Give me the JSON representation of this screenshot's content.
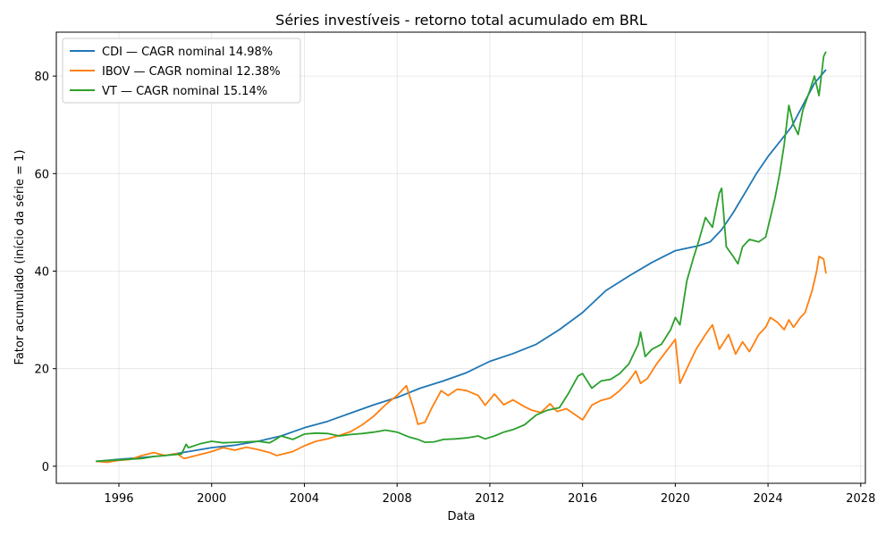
{
  "chart_data": {
    "type": "line",
    "title": "Séries investíveis - retorno total acumulado em BRL",
    "xlabel": "Data",
    "ylabel": "Fator acumulado (início da série = 1)",
    "xlim": [
      1993.3,
      2028.2
    ],
    "ylim": [
      -3.5,
      89.0
    ],
    "x_ticks": [
      1996,
      2000,
      2004,
      2008,
      2012,
      2016,
      2020,
      2024,
      2028
    ],
    "y_ticks": [
      0,
      20,
      40,
      60,
      80
    ],
    "grid": true,
    "legend_position": "top-left",
    "series": [
      {
        "name": "CDI — CAGR nominal 14.98%",
        "color": "#1f77b4",
        "points": [
          [
            1995.0,
            1.0
          ],
          [
            1996.0,
            1.4
          ],
          [
            1997.0,
            1.8
          ],
          [
            1998.0,
            2.2
          ],
          [
            1999.0,
            3.0
          ],
          [
            2000.0,
            3.8
          ],
          [
            2001.0,
            4.3
          ],
          [
            2002.0,
            5.1
          ],
          [
            2003.0,
            6.2
          ],
          [
            2004.0,
            7.9
          ],
          [
            2005.0,
            9.2
          ],
          [
            2006.0,
            10.9
          ],
          [
            2007.0,
            12.6
          ],
          [
            2008.0,
            14.1
          ],
          [
            2009.0,
            16.0
          ],
          [
            2010.0,
            17.5
          ],
          [
            2011.0,
            19.2
          ],
          [
            2012.0,
            21.5
          ],
          [
            2013.0,
            23.1
          ],
          [
            2014.0,
            25.0
          ],
          [
            2015.0,
            28.0
          ],
          [
            2016.0,
            31.5
          ],
          [
            2017.0,
            36.0
          ],
          [
            2018.0,
            39.0
          ],
          [
            2019.0,
            41.8
          ],
          [
            2020.0,
            44.2
          ],
          [
            2021.0,
            45.2
          ],
          [
            2021.5,
            46.0
          ],
          [
            2022.0,
            48.5
          ],
          [
            2022.5,
            52.0
          ],
          [
            2023.0,
            56.0
          ],
          [
            2023.5,
            60.0
          ],
          [
            2024.0,
            63.5
          ],
          [
            2025.0,
            69.5
          ],
          [
            2025.5,
            74.0
          ],
          [
            2026.0,
            78.5
          ],
          [
            2026.5,
            81.3
          ]
        ]
      },
      {
        "name": "IBOV — CAGR nominal 12.38%",
        "color": "#ff7f0e",
        "points": [
          [
            1995.0,
            1.0
          ],
          [
            1995.5,
            0.8
          ],
          [
            1996.0,
            1.2
          ],
          [
            1996.5,
            1.4
          ],
          [
            1997.0,
            2.2
          ],
          [
            1997.5,
            2.8
          ],
          [
            1998.0,
            2.2
          ],
          [
            1998.5,
            2.6
          ],
          [
            1998.8,
            1.6
          ],
          [
            1999.0,
            1.8
          ],
          [
            1999.5,
            2.4
          ],
          [
            2000.0,
            3.0
          ],
          [
            2000.5,
            3.8
          ],
          [
            2001.0,
            3.3
          ],
          [
            2001.5,
            3.9
          ],
          [
            2002.0,
            3.4
          ],
          [
            2002.5,
            2.8
          ],
          [
            2002.8,
            2.2
          ],
          [
            2003.0,
            2.4
          ],
          [
            2003.5,
            3.0
          ],
          [
            2004.0,
            4.2
          ],
          [
            2004.5,
            5.1
          ],
          [
            2005.0,
            5.6
          ],
          [
            2005.5,
            6.3
          ],
          [
            2006.0,
            7.1
          ],
          [
            2006.5,
            8.5
          ],
          [
            2007.0,
            10.3
          ],
          [
            2007.5,
            12.6
          ],
          [
            2008.0,
            14.5
          ],
          [
            2008.4,
            16.5
          ],
          [
            2008.7,
            12.0
          ],
          [
            2008.9,
            8.6
          ],
          [
            2009.2,
            9.0
          ],
          [
            2009.5,
            12.0
          ],
          [
            2009.9,
            15.5
          ],
          [
            2010.2,
            14.5
          ],
          [
            2010.6,
            15.8
          ],
          [
            2011.0,
            15.5
          ],
          [
            2011.5,
            14.5
          ],
          [
            2011.8,
            12.5
          ],
          [
            2012.2,
            14.8
          ],
          [
            2012.6,
            12.6
          ],
          [
            2013.0,
            13.6
          ],
          [
            2013.5,
            12.2
          ],
          [
            2013.8,
            11.5
          ],
          [
            2014.2,
            11.0
          ],
          [
            2014.6,
            12.8
          ],
          [
            2014.9,
            11.2
          ],
          [
            2015.3,
            11.8
          ],
          [
            2015.7,
            10.5
          ],
          [
            2016.0,
            9.5
          ],
          [
            2016.4,
            12.5
          ],
          [
            2016.8,
            13.5
          ],
          [
            2017.2,
            14.0
          ],
          [
            2017.6,
            15.5
          ],
          [
            2018.0,
            17.5
          ],
          [
            2018.3,
            19.5
          ],
          [
            2018.5,
            17.0
          ],
          [
            2018.8,
            18.0
          ],
          [
            2019.2,
            21.0
          ],
          [
            2019.6,
            23.5
          ],
          [
            2020.0,
            26.0
          ],
          [
            2020.2,
            17.0
          ],
          [
            2020.5,
            20.0
          ],
          [
            2020.9,
            24.0
          ],
          [
            2021.3,
            27.0
          ],
          [
            2021.6,
            29.0
          ],
          [
            2021.9,
            24.0
          ],
          [
            2022.3,
            27.0
          ],
          [
            2022.6,
            23.0
          ],
          [
            2022.9,
            25.5
          ],
          [
            2023.2,
            23.5
          ],
          [
            2023.6,
            27.0
          ],
          [
            2023.9,
            28.5
          ],
          [
            2024.1,
            30.5
          ],
          [
            2024.4,
            29.5
          ],
          [
            2024.7,
            28.0
          ],
          [
            2024.9,
            30.0
          ],
          [
            2025.1,
            28.5
          ],
          [
            2025.4,
            30.5
          ],
          [
            2025.6,
            31.5
          ],
          [
            2025.9,
            36.0
          ],
          [
            2026.1,
            40.0
          ],
          [
            2026.2,
            43.0
          ],
          [
            2026.4,
            42.5
          ],
          [
            2026.5,
            39.5
          ]
        ]
      },
      {
        "name": "VT — CAGR nominal 15.14%",
        "color": "#2ca02c",
        "points": [
          [
            1995.0,
            1.0
          ],
          [
            1996.0,
            1.3
          ],
          [
            1997.0,
            1.6
          ],
          [
            1997.5,
            2.0
          ],
          [
            1998.0,
            2.2
          ],
          [
            1998.7,
            2.5
          ],
          [
            1998.9,
            4.5
          ],
          [
            1999.0,
            3.8
          ],
          [
            1999.5,
            4.6
          ],
          [
            2000.0,
            5.1
          ],
          [
            2000.5,
            4.8
          ],
          [
            2001.0,
            4.9
          ],
          [
            2001.5,
            5.0
          ],
          [
            2002.0,
            5.1
          ],
          [
            2002.5,
            4.8
          ],
          [
            2002.8,
            5.6
          ],
          [
            2003.0,
            6.2
          ],
          [
            2003.5,
            5.5
          ],
          [
            2004.0,
            6.6
          ],
          [
            2004.5,
            6.8
          ],
          [
            2005.0,
            6.7
          ],
          [
            2005.5,
            6.2
          ],
          [
            2006.0,
            6.5
          ],
          [
            2006.5,
            6.7
          ],
          [
            2007.0,
            7.0
          ],
          [
            2007.5,
            7.4
          ],
          [
            2008.0,
            7.0
          ],
          [
            2008.5,
            6.0
          ],
          [
            2008.9,
            5.5
          ],
          [
            2009.2,
            4.9
          ],
          [
            2009.6,
            5.0
          ],
          [
            2010.0,
            5.5
          ],
          [
            2010.5,
            5.6
          ],
          [
            2011.0,
            5.8
          ],
          [
            2011.5,
            6.2
          ],
          [
            2011.8,
            5.6
          ],
          [
            2012.2,
            6.2
          ],
          [
            2012.6,
            7.0
          ],
          [
            2013.0,
            7.5
          ],
          [
            2013.5,
            8.5
          ],
          [
            2014.0,
            10.5
          ],
          [
            2014.5,
            11.5
          ],
          [
            2015.0,
            12.0
          ],
          [
            2015.4,
            15.0
          ],
          [
            2015.8,
            18.5
          ],
          [
            2016.0,
            19.0
          ],
          [
            2016.4,
            16.0
          ],
          [
            2016.8,
            17.5
          ],
          [
            2017.2,
            17.8
          ],
          [
            2017.6,
            19.0
          ],
          [
            2018.0,
            21.0
          ],
          [
            2018.4,
            25.0
          ],
          [
            2018.5,
            27.5
          ],
          [
            2018.7,
            22.5
          ],
          [
            2019.0,
            24.0
          ],
          [
            2019.4,
            25.0
          ],
          [
            2019.8,
            28.0
          ],
          [
            2020.0,
            30.5
          ],
          [
            2020.2,
            29.0
          ],
          [
            2020.5,
            38.0
          ],
          [
            2020.8,
            43.0
          ],
          [
            2021.0,
            46.0
          ],
          [
            2021.3,
            51.0
          ],
          [
            2021.6,
            49.0
          ],
          [
            2021.9,
            56.0
          ],
          [
            2022.0,
            57.0
          ],
          [
            2022.2,
            45.0
          ],
          [
            2022.5,
            43.0
          ],
          [
            2022.7,
            41.5
          ],
          [
            2022.9,
            45.0
          ],
          [
            2023.2,
            46.5
          ],
          [
            2023.6,
            46.0
          ],
          [
            2023.9,
            47.0
          ],
          [
            2024.0,
            49.0
          ],
          [
            2024.3,
            55.0
          ],
          [
            2024.5,
            60.0
          ],
          [
            2024.7,
            66.0
          ],
          [
            2024.9,
            74.0
          ],
          [
            2025.1,
            70.0
          ],
          [
            2025.3,
            68.0
          ],
          [
            2025.5,
            73.0
          ],
          [
            2025.8,
            77.0
          ],
          [
            2026.0,
            80.0
          ],
          [
            2026.2,
            76.0
          ],
          [
            2026.4,
            84.0
          ],
          [
            2026.5,
            85.0
          ]
        ]
      }
    ]
  }
}
